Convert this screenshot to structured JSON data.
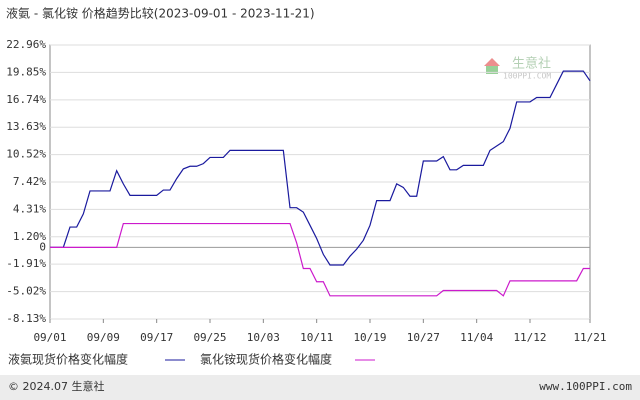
{
  "chart_data": {
    "type": "line",
    "title": "液氨 - 氯化铵 价格趋势比较(2023-09-01 - 2023-11-21)",
    "categories": [
      "09/01",
      null,
      null,
      null,
      null,
      null,
      null,
      null,
      "09/09",
      null,
      null,
      null,
      null,
      null,
      null,
      null,
      "09/17",
      null,
      null,
      null,
      null,
      null,
      null,
      null,
      "09/25",
      null,
      null,
      null,
      null,
      null,
      null,
      null,
      "10/03",
      null,
      null,
      null,
      null,
      null,
      null,
      null,
      "10/11",
      null,
      null,
      null,
      null,
      null,
      null,
      null,
      "10/19",
      null,
      null,
      null,
      null,
      null,
      null,
      null,
      "10/27",
      null,
      null,
      null,
      null,
      null,
      null,
      null,
      "11/04",
      null,
      null,
      null,
      null,
      null,
      null,
      null,
      "11/12",
      null,
      null,
      null,
      null,
      null,
      null,
      null,
      null,
      "11/21"
    ],
    "series": [
      {
        "name": "液氨现货价格变化幅度",
        "color": "#1a1a9e",
        "values": [
          0,
          0,
          0,
          2.3,
          2.3,
          3.8,
          6.4,
          6.4,
          6.4,
          6.4,
          8.7,
          7.2,
          5.9,
          5.9,
          5.9,
          5.9,
          5.9,
          6.5,
          6.5,
          7.8,
          8.9,
          9.2,
          9.2,
          9.5,
          10.2,
          10.2,
          10.2,
          11,
          11,
          11,
          11,
          11,
          11,
          11,
          11,
          11,
          4.5,
          4.5,
          4.0,
          2.5,
          1.0,
          -0.8,
          -2.0,
          -2.0,
          -2.0,
          -1.0,
          -0.2,
          0.8,
          2.5,
          5.3,
          5.3,
          5.3,
          7.2,
          6.8,
          5.8,
          5.8,
          9.8,
          9.8,
          9.8,
          10.3,
          8.8,
          8.8,
          9.3,
          9.3,
          9.3,
          9.3,
          11.0,
          11.5,
          12.0,
          13.5,
          16.5,
          16.5,
          16.5,
          17.0,
          17.0,
          17.0,
          18.5,
          20.0,
          20.0,
          20.0,
          20.0,
          18.9
        ]
      },
      {
        "name": "氯化铵现货价格变化幅度",
        "color": "#cc1acc",
        "values": [
          0,
          0,
          0,
          0,
          0,
          0,
          0,
          0,
          0,
          0,
          0,
          2.7,
          2.7,
          2.7,
          2.7,
          2.7,
          2.7,
          2.7,
          2.7,
          2.7,
          2.7,
          2.7,
          2.7,
          2.7,
          2.7,
          2.7,
          2.7,
          2.7,
          2.7,
          2.7,
          2.7,
          2.7,
          2.7,
          2.7,
          2.7,
          2.7,
          2.7,
          0.5,
          -2.4,
          -2.4,
          -3.9,
          -3.9,
          -5.5,
          -5.5,
          -5.5,
          -5.5,
          -5.5,
          -5.5,
          -5.5,
          -5.5,
          -5.5,
          -5.5,
          -5.5,
          -5.5,
          -5.5,
          -5.5,
          -5.5,
          -5.5,
          -5.5,
          -4.9,
          -4.9,
          -4.9,
          -4.9,
          -4.9,
          -4.9,
          -4.9,
          -4.9,
          -4.9,
          -5.5,
          -3.8,
          -3.8,
          -3.8,
          -3.8,
          -3.8,
          -3.8,
          -3.8,
          -3.8,
          -3.8,
          -3.8,
          -3.8,
          -2.4,
          -2.4
        ]
      }
    ],
    "ylim": [
      -8.13,
      22.96
    ],
    "yticks": [
      {
        "value": 22.96,
        "label": "22.96%"
      },
      {
        "value": 19.85,
        "label": "19.85%"
      },
      {
        "value": 16.74,
        "label": "16.74%"
      },
      {
        "value": 13.63,
        "label": "13.63%"
      },
      {
        "value": 10.52,
        "label": "10.52%"
      },
      {
        "value": 7.42,
        "label": "7.42%"
      },
      {
        "value": 4.31,
        "label": "4.31%"
      },
      {
        "value": 1.2,
        "label": "1.20%"
      },
      0,
      {
        "value": -1.91,
        "label": "-1.91%"
      },
      {
        "value": -5.02,
        "label": "-5.02%"
      },
      {
        "value": -8.13,
        "label": "-8.13%"
      }
    ],
    "grid": true,
    "watermark": {
      "name": "生意社",
      "site": "100PPI.COM"
    }
  },
  "footer": {
    "copyright": "© 2024.07 生意社",
    "website": "www.100PPI.com"
  }
}
